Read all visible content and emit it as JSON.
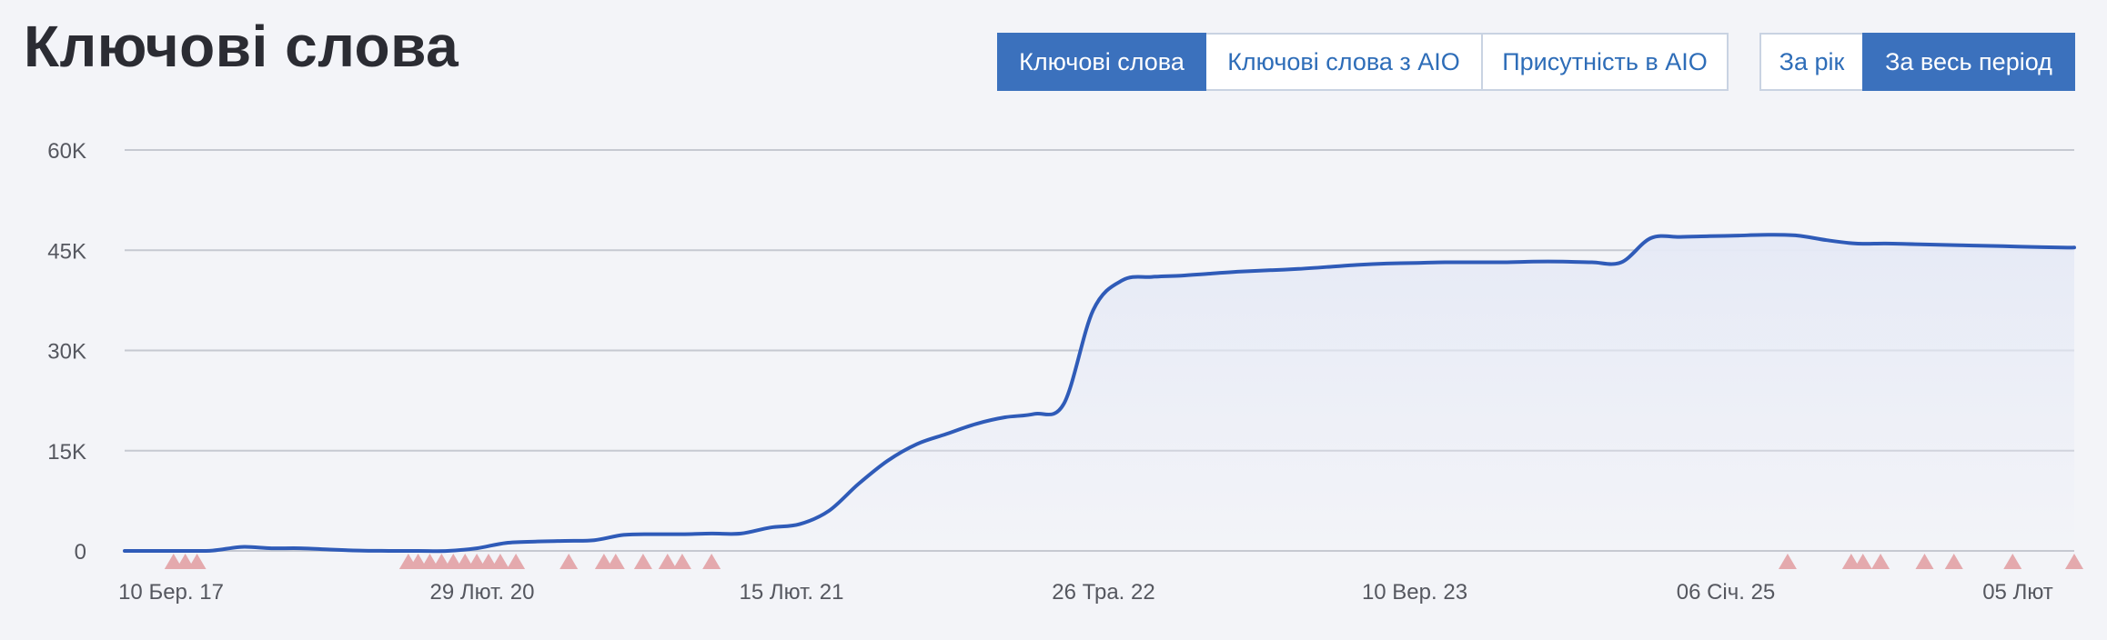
{
  "header": {
    "title": "Ключові слова"
  },
  "metric_buttons": [
    {
      "label": "Ключові слова",
      "active": true
    },
    {
      "label": "Ключові слова з AIO",
      "active": false
    },
    {
      "label": "Присутність в AIO",
      "active": false
    }
  ],
  "period_buttons": [
    {
      "label": "За рік",
      "active": false
    },
    {
      "label": "За весь період",
      "active": true
    }
  ],
  "colors": {
    "line": "#2f5bb8",
    "area": "#e6eaf6",
    "marker": "#e4a9ad",
    "grid": "#c6c9d1",
    "button_active": "#3b71bd"
  },
  "chart_data": {
    "type": "line",
    "title": "",
    "xlabel": "",
    "ylabel": "",
    "x_tick_labels": [
      "10 Бер. 17",
      "29 Лют. 20",
      "15 Лют. 21",
      "26 Тра. 22",
      "10 Вер. 23",
      "06 Січ. 25",
      "05 Лют"
    ],
    "y_tick_labels": [
      "0",
      "15K",
      "30K",
      "45K",
      "60K"
    ],
    "y_ticks": [
      0,
      15000,
      30000,
      45000,
      60000
    ],
    "ylim": [
      0,
      60000
    ],
    "grid": true,
    "area_fill": true,
    "series": [
      {
        "x": [
          0,
          3,
          6,
          9,
          12,
          15,
          18,
          21,
          24,
          27,
          30,
          33,
          36,
          39,
          42,
          45,
          48,
          51,
          54,
          57,
          60,
          63,
          66,
          69,
          72,
          75,
          78,
          81,
          84,
          87,
          90,
          93,
          96,
          99,
          102,
          105,
          108,
          111,
          114,
          117,
          120,
          123,
          126,
          129,
          132,
          135,
          138,
          141,
          144,
          147,
          150,
          153,
          156,
          159,
          162,
          165,
          168,
          171,
          174,
          177,
          180,
          183,
          186,
          189,
          192,
          195,
          198,
          199.3
        ],
        "y": [
          0,
          0,
          0,
          50,
          600,
          400,
          400,
          200,
          50,
          0,
          0,
          0,
          400,
          1200,
          1400,
          1500,
          1600,
          2400,
          2500,
          2500,
          2600,
          2600,
          3500,
          4000,
          6000,
          10000,
          13500,
          16000,
          17500,
          19000,
          20000,
          20500,
          22000,
          36000,
          40500,
          41000,
          41200,
          41500,
          41800,
          42000,
          42200,
          42500,
          42800,
          43000,
          43100,
          43200,
          43200,
          43200,
          43300,
          43300,
          43200,
          43200,
          46800,
          47000,
          47100,
          47200,
          47300,
          47200,
          46500,
          46000,
          46000,
          45900,
          45800,
          45700,
          45600,
          45500,
          45400,
          45400
        ]
      }
    ],
    "markers_x": [
      5,
      6.2,
      7.4,
      29,
      30,
      31.2,
      32.4,
      33.6,
      34.8,
      36,
      37.2,
      38.4,
      40,
      45.4,
      49,
      50.2,
      53,
      55.5,
      57,
      60,
      170,
      176.5,
      177.7,
      179.5,
      184,
      187,
      193,
      199.3
    ]
  }
}
